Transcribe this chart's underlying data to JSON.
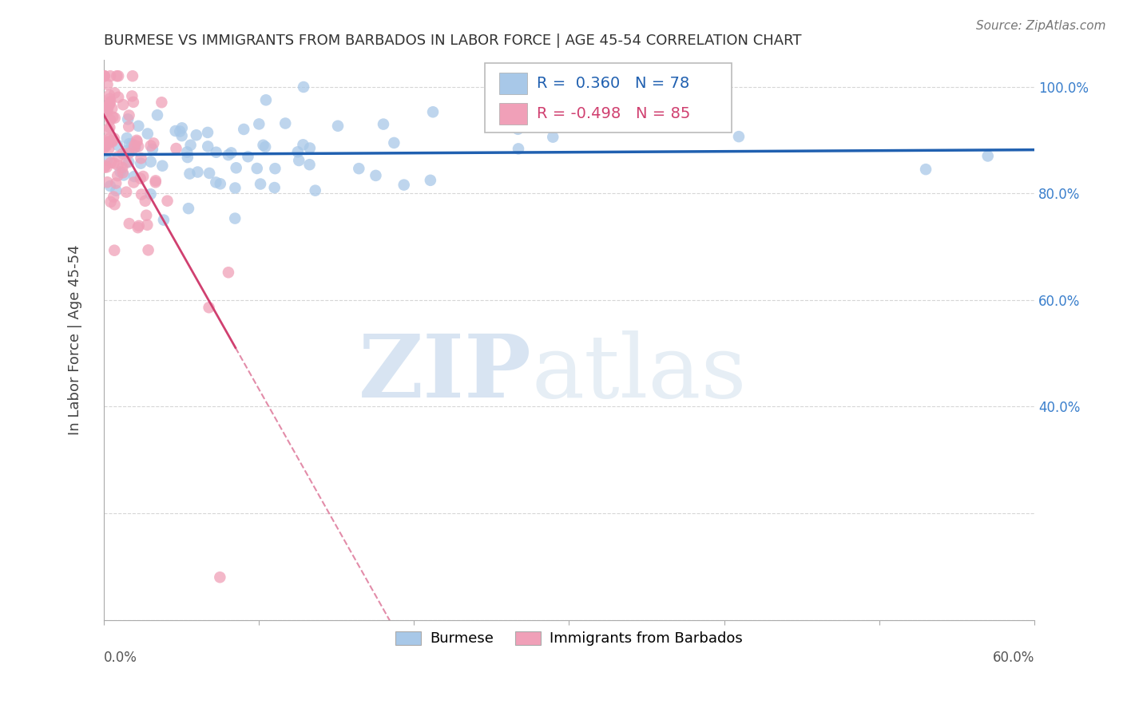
{
  "title": "BURMESE VS IMMIGRANTS FROM BARBADOS IN LABOR FORCE | AGE 45-54 CORRELATION CHART",
  "source": "Source: ZipAtlas.com",
  "ylabel": "In Labor Force | Age 45-54",
  "right_yticklabels": [
    "100.0%",
    "80.0%",
    "60.0%",
    "40.0%"
  ],
  "right_ytick_vals": [
    1.0,
    0.8,
    0.6,
    0.4
  ],
  "blue_R": 0.36,
  "blue_N": 78,
  "pink_R": -0.498,
  "pink_N": 85,
  "blue_color": "#a8c8e8",
  "blue_line_color": "#2060b0",
  "pink_color": "#f0a0b8",
  "pink_line_color": "#d04070",
  "watermark_zip": "ZIP",
  "watermark_atlas": "atlas",
  "watermark_color_zip": "#c5d8f0",
  "watermark_color_atlas": "#c5d8f0",
  "legend_label_blue": "Burmese",
  "legend_label_pink": "Immigrants from Barbados",
  "xmin": 0.0,
  "xmax": 0.6,
  "ymin": 0.0,
  "ymax": 1.05,
  "seed": 12345
}
